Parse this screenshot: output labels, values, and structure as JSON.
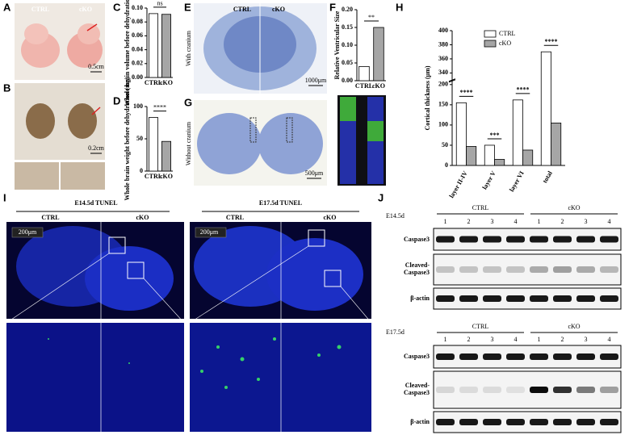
{
  "chart_data": [
    {
      "type": "bar",
      "categories": [
        "CTRL",
        "cKO"
      ],
      "values": [
        0.092,
        0.091
      ],
      "colors": [
        "#ffffff",
        "#a6a6a6"
      ],
      "ylabel": "Whole brain volume before dehydration (cm³)",
      "annotation": "ns",
      "ylim": [
        0,
        0.1
      ],
      "yticks": [
        {
          "value": 0,
          "label": "0.00"
        },
        {
          "value": 0.02,
          "label": "0.02"
        },
        {
          "value": 0.04,
          "label": "0.04"
        },
        {
          "value": 0.06,
          "label": "0.06"
        },
        {
          "value": 0.08,
          "label": "0.08"
        },
        {
          "value": 0.1,
          "label": "0.10"
        }
      ]
    },
    {
      "type": "bar",
      "categories": [
        "CTRL",
        "cKO"
      ],
      "values": [
        83,
        46
      ],
      "colors": [
        "#ffffff",
        "#a6a6a6"
      ],
      "ylabel": "Whole brain weight before dehydration (mg)",
      "annotation": "****",
      "ylim": [
        0,
        100
      ],
      "yticks": [
        0,
        50,
        100
      ]
    },
    {
      "type": "bar",
      "categories": [
        "CTRL",
        "cKO"
      ],
      "values": [
        0.04,
        0.15
      ],
      "colors": [
        "#ffffff",
        "#a6a6a6"
      ],
      "ylabel": "Relative Ventricular Size",
      "annotation": "**",
      "ylim": [
        0,
        0.2
      ],
      "yticks": [
        {
          "value": 0,
          "label": "0.00"
        },
        {
          "value": 0.05,
          "label": "0.05"
        },
        {
          "value": 0.1,
          "label": "0.10"
        },
        {
          "value": 0.15,
          "label": "0.15"
        },
        {
          "value": 0.2,
          "label": "0.20"
        }
      ]
    },
    {
      "type": "grouped_bar",
      "categories": [
        "layer II-IV",
        "layer V",
        "layer VI",
        "total"
      ],
      "series": [
        {
          "name": "CTRL",
          "color": "#ffffff",
          "values": [
            155,
            50,
            162,
            370
          ]
        },
        {
          "name": "cKO",
          "color": "#a6a6a6",
          "values": [
            47,
            15,
            38,
            105
          ]
        }
      ],
      "annotations": [
        "****",
        "***",
        "****",
        "****"
      ],
      "ylabel": "Cortical thickness (μm)",
      "legend": "top",
      "ylim": [
        0,
        400
      ],
      "axis_break": [
        200,
        335
      ],
      "yticks": [
        0,
        50,
        100,
        150,
        200,
        340,
        360,
        380,
        400
      ]
    }
  ],
  "figure": {
    "letters": [
      "A",
      "B",
      "C",
      "D",
      "E",
      "F",
      "G",
      "H",
      "I",
      "J"
    ],
    "A": {
      "labels": [
        "CTRL",
        "cKO"
      ],
      "scale": "0.5cm"
    },
    "B": {
      "scale": "0.2cm"
    },
    "E": {
      "labels": [
        "CTRL",
        "cKO"
      ],
      "side": "With cranium",
      "scale": "1000μm"
    },
    "G": {
      "side": "Without cranium",
      "scale": "500μm"
    },
    "I": [
      {
        "title": "E14.5d TUNEL",
        "labels": [
          "CTRL",
          "cKO"
        ],
        "scale": "200μm"
      },
      {
        "title": "E17.5d TUNEL",
        "labels": [
          "CTRL",
          "cKO"
        ],
        "scale": "200μm"
      }
    ],
    "J": [
      {
        "stage": "E14.5d",
        "groups": [
          "CTRL",
          "cKO"
        ],
        "lanes": [
          "1",
          "2",
          "3",
          "4"
        ],
        "rows": [
          "Caspase3",
          "Cleaved-Caspase3",
          "β-actin"
        ]
      },
      {
        "stage": "E17.5d",
        "groups": [
          "CTRL",
          "cKO"
        ],
        "lanes": [
          "1",
          "2",
          "3",
          "4"
        ],
        "rows": [
          "Caspase3",
          "Cleaved-Caspase3",
          "β-actin"
        ]
      }
    ]
  }
}
